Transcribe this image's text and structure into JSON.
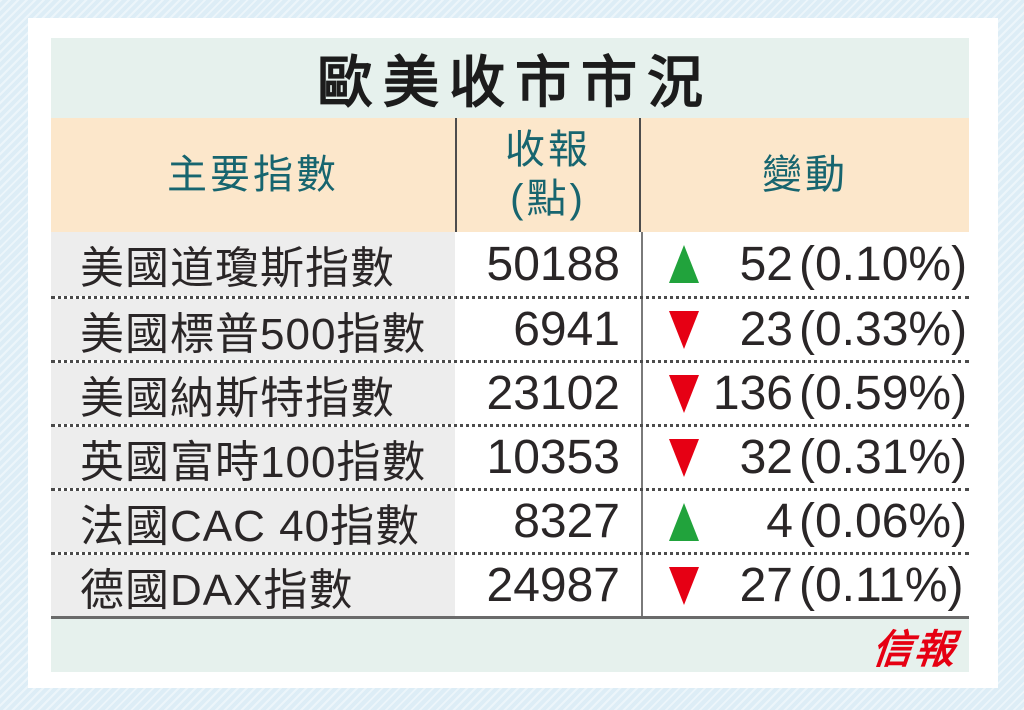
{
  "title": "歐美收市市況",
  "logo": "信報",
  "columns": {
    "index": "主要指數",
    "close_line1": "收報",
    "close_line2": "(點)",
    "change": "變動"
  },
  "rows": [
    {
      "name": "美國道瓊斯指數",
      "close": "50188",
      "direction": "up",
      "value": "52",
      "percent": "(0.10%)"
    },
    {
      "name": "美國標普500指數",
      "close": "6941",
      "direction": "down",
      "value": "23",
      "percent": "(0.33%)"
    },
    {
      "name": "美國納斯特指數",
      "close": "23102",
      "direction": "down",
      "value": "136",
      "percent": "(0.59%)"
    },
    {
      "name": "英國富時100指數",
      "close": "10353",
      "direction": "down",
      "value": "32",
      "percent": "(0.31%)"
    },
    {
      "name": "法國CAC 40指數",
      "close": "8327",
      "direction": "up",
      "value": "4",
      "percent": "(0.06%)"
    },
    {
      "name": "德國DAX指數",
      "close": "24987",
      "direction": "down",
      "value": "27",
      "percent": "(0.11%)"
    }
  ],
  "colors": {
    "up": "#21a33c",
    "down": "#e60014",
    "header_text": "#17656f",
    "title_text": "#1c1c1c",
    "body_text": "#2a2627",
    "title_band_bg": "#e6f1ed",
    "header_band_bg": "#fce7cb",
    "name_col_bg": "#ededed",
    "footer_band_bg": "#e6f1ed",
    "page_bg": "#ddedf6",
    "card_bg": "#ffffff",
    "logo_red": "#e60012",
    "divider": "#4d4d4d"
  },
  "chart_data": {
    "type": "table",
    "title": "歐美收市市況",
    "columns": [
      "主要指數",
      "收報(點)",
      "變動"
    ],
    "rows": [
      {
        "index": "美國道瓊斯指數",
        "close": 50188,
        "change_direction": "up",
        "change_points": 52,
        "change_percent": "0.10%"
      },
      {
        "index": "美國標普500指數",
        "close": 6941,
        "change_direction": "down",
        "change_points": 23,
        "change_percent": "0.33%"
      },
      {
        "index": "美國納斯特指數",
        "close": 23102,
        "change_direction": "down",
        "change_points": 136,
        "change_percent": "0.59%"
      },
      {
        "index": "英國富時100指數",
        "close": 10353,
        "change_direction": "down",
        "change_points": 32,
        "change_percent": "0.31%"
      },
      {
        "index": "法國CAC 40指數",
        "close": 8327,
        "change_direction": "up",
        "change_points": 4,
        "change_percent": "0.06%"
      },
      {
        "index": "德國DAX指數",
        "close": 24987,
        "change_direction": "down",
        "change_points": 27,
        "change_percent": "0.11%"
      }
    ],
    "legend_position": "none",
    "grid": "dotted-row-separators",
    "source_logo": "信報"
  }
}
